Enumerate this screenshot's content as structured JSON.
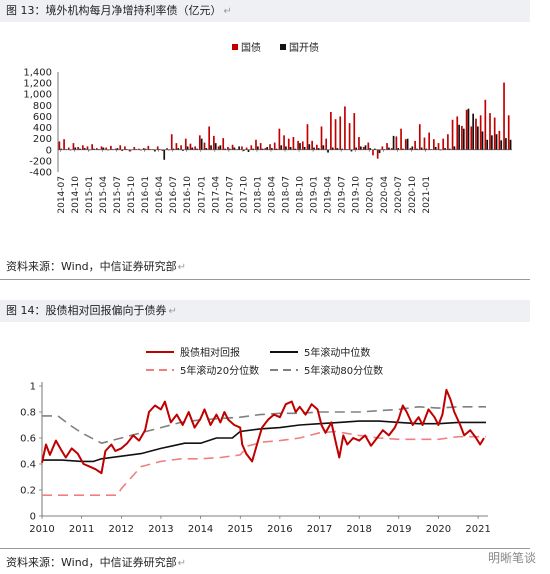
{
  "figure1": {
    "title": "图 13：境外机构每月净增持利率债（亿元）",
    "source": "资料来源：Wind，中信证券研究部"
  },
  "figure2": {
    "title": "图 14：股债相对回报偏向于债券",
    "source": "资料来源：Wind，中信证券研究部"
  },
  "watermark": "明晰笔谈",
  "colors": {
    "red": "#c00000",
    "black": "#111111",
    "lightred": "#f08080",
    "gray": "#808080"
  },
  "chart_data": [
    {
      "type": "bar",
      "legend_position": "top-right",
      "ylim": [
        -400,
        1400
      ],
      "yticks": [
        -400,
        -200,
        0,
        200,
        400,
        600,
        800,
        1000,
        1200,
        1400
      ],
      "ytick_labels": [
        "-400",
        "-200",
        "0",
        "200",
        "400",
        "600",
        "800",
        "1,000",
        "1,200",
        "1,400"
      ],
      "x_start": "2014-07",
      "xtick_labels": [
        "2014-07",
        "2014-10",
        "2015-01",
        "2015-04",
        "2015-07",
        "2015-10",
        "2016-01",
        "2016-04",
        "2016-07",
        "2016-10",
        "2017-01",
        "2017-04",
        "2017-07",
        "2017-10",
        "2018-01",
        "2018-04",
        "2018-07",
        "2018-10",
        "2019-01",
        "2019-04",
        "2019-07",
        "2019-10",
        "2020-01",
        "2020-04",
        "2020-07",
        "2020-10",
        "2021-01"
      ],
      "series": [
        {
          "name": "国债",
          "color": "#c00000",
          "values": [
            150,
            190,
            40,
            120,
            50,
            80,
            60,
            100,
            30,
            60,
            40,
            70,
            20,
            80,
            60,
            -30,
            50,
            20,
            30,
            70,
            10,
            60,
            -20,
            30,
            280,
            120,
            80,
            200,
            110,
            60,
            260,
            130,
            420,
            250,
            60,
            210,
            50,
            90,
            10,
            60,
            40,
            80,
            180,
            120,
            30,
            100,
            130,
            380,
            260,
            200,
            230,
            160,
            150,
            460,
            160,
            90,
            420,
            200,
            680,
            550,
            600,
            780,
            480,
            660,
            230,
            50,
            130,
            -100,
            -160,
            60,
            120,
            30,
            240,
            380,
            190,
            30,
            160,
            460,
            220,
            310,
            190,
            120,
            200,
            280,
            540,
            600,
            430,
            720,
            420,
            560,
            620,
            900,
            660,
            580,
            340,
            1210,
            620
          ]
        },
        {
          "name": "国开债",
          "color": "#111111",
          "values": [
            20,
            10,
            -10,
            40,
            20,
            30,
            -10,
            20,
            10,
            40,
            -10,
            10,
            30,
            -20,
            10,
            0,
            10,
            -10,
            20,
            10,
            -30,
            10,
            -180,
            -10,
            20,
            30,
            -20,
            60,
            40,
            20,
            200,
            30,
            80,
            120,
            80,
            20,
            20,
            40,
            60,
            -20,
            -40,
            20,
            60,
            20,
            50,
            30,
            20,
            80,
            60,
            50,
            20,
            120,
            50,
            100,
            40,
            30,
            80,
            -50,
            40,
            30,
            20,
            10,
            -30,
            40,
            60,
            80,
            30,
            20,
            -60,
            10,
            40,
            250,
            30,
            20,
            200,
            60,
            20,
            40,
            20,
            10,
            50,
            -10,
            30,
            20,
            60,
            450,
            380,
            740,
            650,
            420,
            330,
            180,
            260,
            280,
            170,
            210,
            180
          ]
        }
      ]
    },
    {
      "type": "line",
      "legend_position": "top",
      "ylim": [
        0,
        1
      ],
      "yticks": [
        0,
        0.2,
        0.4,
        0.6,
        0.8,
        1
      ],
      "ytick_labels": [
        "0",
        "0.2",
        "0.4",
        "0.6",
        "0.8",
        "1"
      ],
      "xlim": [
        2010,
        2021.25
      ],
      "xticks": [
        2010,
        2011,
        2012,
        2013,
        2014,
        2015,
        2016,
        2017,
        2018,
        2019,
        2020,
        2021
      ],
      "xtick_labels": [
        "2010",
        "2011",
        "2012",
        "2013",
        "2014",
        "2015",
        "2016",
        "2017",
        "2018",
        "2019",
        "2020",
        "2021"
      ],
      "series": [
        {
          "name": "股债相对回报",
          "color": "#c00000",
          "dash": "none",
          "width": 2,
          "points": [
            [
              2010,
              0.41
            ],
            [
              2010.1,
              0.55
            ],
            [
              2010.2,
              0.47
            ],
            [
              2010.35,
              0.58
            ],
            [
              2010.5,
              0.5
            ],
            [
              2010.6,
              0.45
            ],
            [
              2010.75,
              0.52
            ],
            [
              2010.9,
              0.48
            ],
            [
              2011.05,
              0.4
            ],
            [
              2011.2,
              0.38
            ],
            [
              2011.35,
              0.36
            ],
            [
              2011.5,
              0.33
            ],
            [
              2011.6,
              0.5
            ],
            [
              2011.75,
              0.55
            ],
            [
              2011.85,
              0.5
            ],
            [
              2012,
              0.52
            ],
            [
              2012.15,
              0.56
            ],
            [
              2012.3,
              0.62
            ],
            [
              2012.45,
              0.58
            ],
            [
              2012.6,
              0.66
            ],
            [
              2012.7,
              0.8
            ],
            [
              2012.85,
              0.85
            ],
            [
              2013,
              0.82
            ],
            [
              2013.1,
              0.88
            ],
            [
              2013.25,
              0.72
            ],
            [
              2013.4,
              0.78
            ],
            [
              2013.55,
              0.7
            ],
            [
              2013.7,
              0.8
            ],
            [
              2013.85,
              0.68
            ],
            [
              2014,
              0.75
            ],
            [
              2014.1,
              0.82
            ],
            [
              2014.25,
              0.7
            ],
            [
              2014.4,
              0.78
            ],
            [
              2014.5,
              0.72
            ],
            [
              2014.6,
              0.8
            ],
            [
              2014.7,
              0.74
            ],
            [
              2014.85,
              0.7
            ],
            [
              2015,
              0.68
            ],
            [
              2015.05,
              0.55
            ],
            [
              2015.15,
              0.48
            ],
            [
              2015.3,
              0.42
            ],
            [
              2015.45,
              0.58
            ],
            [
              2015.55,
              0.68
            ],
            [
              2015.7,
              0.74
            ],
            [
              2015.85,
              0.78
            ],
            [
              2016,
              0.76
            ],
            [
              2016.15,
              0.86
            ],
            [
              2016.3,
              0.88
            ],
            [
              2016.4,
              0.8
            ],
            [
              2016.5,
              0.84
            ],
            [
              2016.65,
              0.78
            ],
            [
              2016.8,
              0.86
            ],
            [
              2016.95,
              0.82
            ],
            [
              2017.05,
              0.7
            ],
            [
              2017.15,
              0.64
            ],
            [
              2017.3,
              0.72
            ],
            [
              2017.4,
              0.58
            ],
            [
              2017.5,
              0.45
            ],
            [
              2017.6,
              0.62
            ],
            [
              2017.7,
              0.55
            ],
            [
              2017.85,
              0.6
            ],
            [
              2018,
              0.58
            ],
            [
              2018.15,
              0.62
            ],
            [
              2018.3,
              0.54
            ],
            [
              2018.45,
              0.6
            ],
            [
              2018.6,
              0.66
            ],
            [
              2018.75,
              0.62
            ],
            [
              2018.9,
              0.68
            ],
            [
              2019,
              0.75
            ],
            [
              2019.1,
              0.85
            ],
            [
              2019.2,
              0.8
            ],
            [
              2019.35,
              0.7
            ],
            [
              2019.5,
              0.76
            ],
            [
              2019.6,
              0.7
            ],
            [
              2019.75,
              0.82
            ],
            [
              2019.9,
              0.76
            ],
            [
              2020,
              0.7
            ],
            [
              2020.1,
              0.78
            ],
            [
              2020.2,
              0.97
            ],
            [
              2020.3,
              0.9
            ],
            [
              2020.4,
              0.8
            ],
            [
              2020.55,
              0.7
            ],
            [
              2020.65,
              0.62
            ],
            [
              2020.8,
              0.66
            ],
            [
              2020.95,
              0.6
            ],
            [
              2021.05,
              0.55
            ],
            [
              2021.15,
              0.6
            ]
          ]
        },
        {
          "name": "5年滚动中位数",
          "color": "#111111",
          "dash": "none",
          "width": 1.6,
          "points": [
            [
              2010,
              0.43
            ],
            [
              2010.5,
              0.43
            ],
            [
              2011,
              0.42
            ],
            [
              2011.3,
              0.42
            ],
            [
              2011.5,
              0.44
            ],
            [
              2012,
              0.46
            ],
            [
              2012.5,
              0.48
            ],
            [
              2013,
              0.52
            ],
            [
              2013.3,
              0.54
            ],
            [
              2013.6,
              0.56
            ],
            [
              2014,
              0.56
            ],
            [
              2014.4,
              0.6
            ],
            [
              2014.8,
              0.6
            ],
            [
              2015,
              0.65
            ],
            [
              2015.5,
              0.67
            ],
            [
              2016,
              0.68
            ],
            [
              2016.5,
              0.7
            ],
            [
              2017,
              0.71
            ],
            [
              2017.5,
              0.72
            ],
            [
              2018,
              0.73
            ],
            [
              2018.5,
              0.73
            ],
            [
              2019,
              0.72
            ],
            [
              2019.5,
              0.71
            ],
            [
              2020,
              0.71
            ],
            [
              2020.5,
              0.72
            ],
            [
              2021,
              0.72
            ],
            [
              2021.2,
              0.72
            ]
          ]
        },
        {
          "name": "5年滚动20分位数",
          "color": "#f08080",
          "dash": "10,6",
          "width": 1.6,
          "points": [
            [
              2010,
              0.16
            ],
            [
              2011,
              0.16
            ],
            [
              2011.9,
              0.16
            ],
            [
              2012,
              0.21
            ],
            [
              2012.5,
              0.38
            ],
            [
              2013,
              0.42
            ],
            [
              2013.5,
              0.44
            ],
            [
              2014,
              0.44
            ],
            [
              2014.5,
              0.45
            ],
            [
              2015,
              0.47
            ],
            [
              2015.2,
              0.54
            ],
            [
              2015.6,
              0.57
            ],
            [
              2016,
              0.58
            ],
            [
              2016.5,
              0.6
            ],
            [
              2017,
              0.64
            ],
            [
              2017.4,
              0.65
            ],
            [
              2018,
              0.62
            ],
            [
              2018.5,
              0.6
            ],
            [
              2019,
              0.59
            ],
            [
              2019.5,
              0.59
            ],
            [
              2020,
              0.59
            ],
            [
              2020.5,
              0.61
            ],
            [
              2021,
              0.61
            ],
            [
              2021.2,
              0.61
            ]
          ]
        },
        {
          "name": "5年滚动80分位数",
          "color": "#808080",
          "dash": "10,6",
          "width": 1.6,
          "points": [
            [
              2010,
              0.77
            ],
            [
              2010.4,
              0.77
            ],
            [
              2010.7,
              0.7
            ],
            [
              2011,
              0.64
            ],
            [
              2011.5,
              0.56
            ],
            [
              2012,
              0.6
            ],
            [
              2012.5,
              0.64
            ],
            [
              2013,
              0.68
            ],
            [
              2013.5,
              0.72
            ],
            [
              2014,
              0.74
            ],
            [
              2014.5,
              0.75
            ],
            [
              2015,
              0.76
            ],
            [
              2015.5,
              0.78
            ],
            [
              2016,
              0.79
            ],
            [
              2016.5,
              0.79
            ],
            [
              2017,
              0.8
            ],
            [
              2017.5,
              0.8
            ],
            [
              2018,
              0.8
            ],
            [
              2018.5,
              0.81
            ],
            [
              2019,
              0.82
            ],
            [
              2019.5,
              0.84
            ],
            [
              2020,
              0.83
            ],
            [
              2020.5,
              0.84
            ],
            [
              2021,
              0.84
            ],
            [
              2021.2,
              0.84
            ]
          ]
        }
      ]
    }
  ]
}
